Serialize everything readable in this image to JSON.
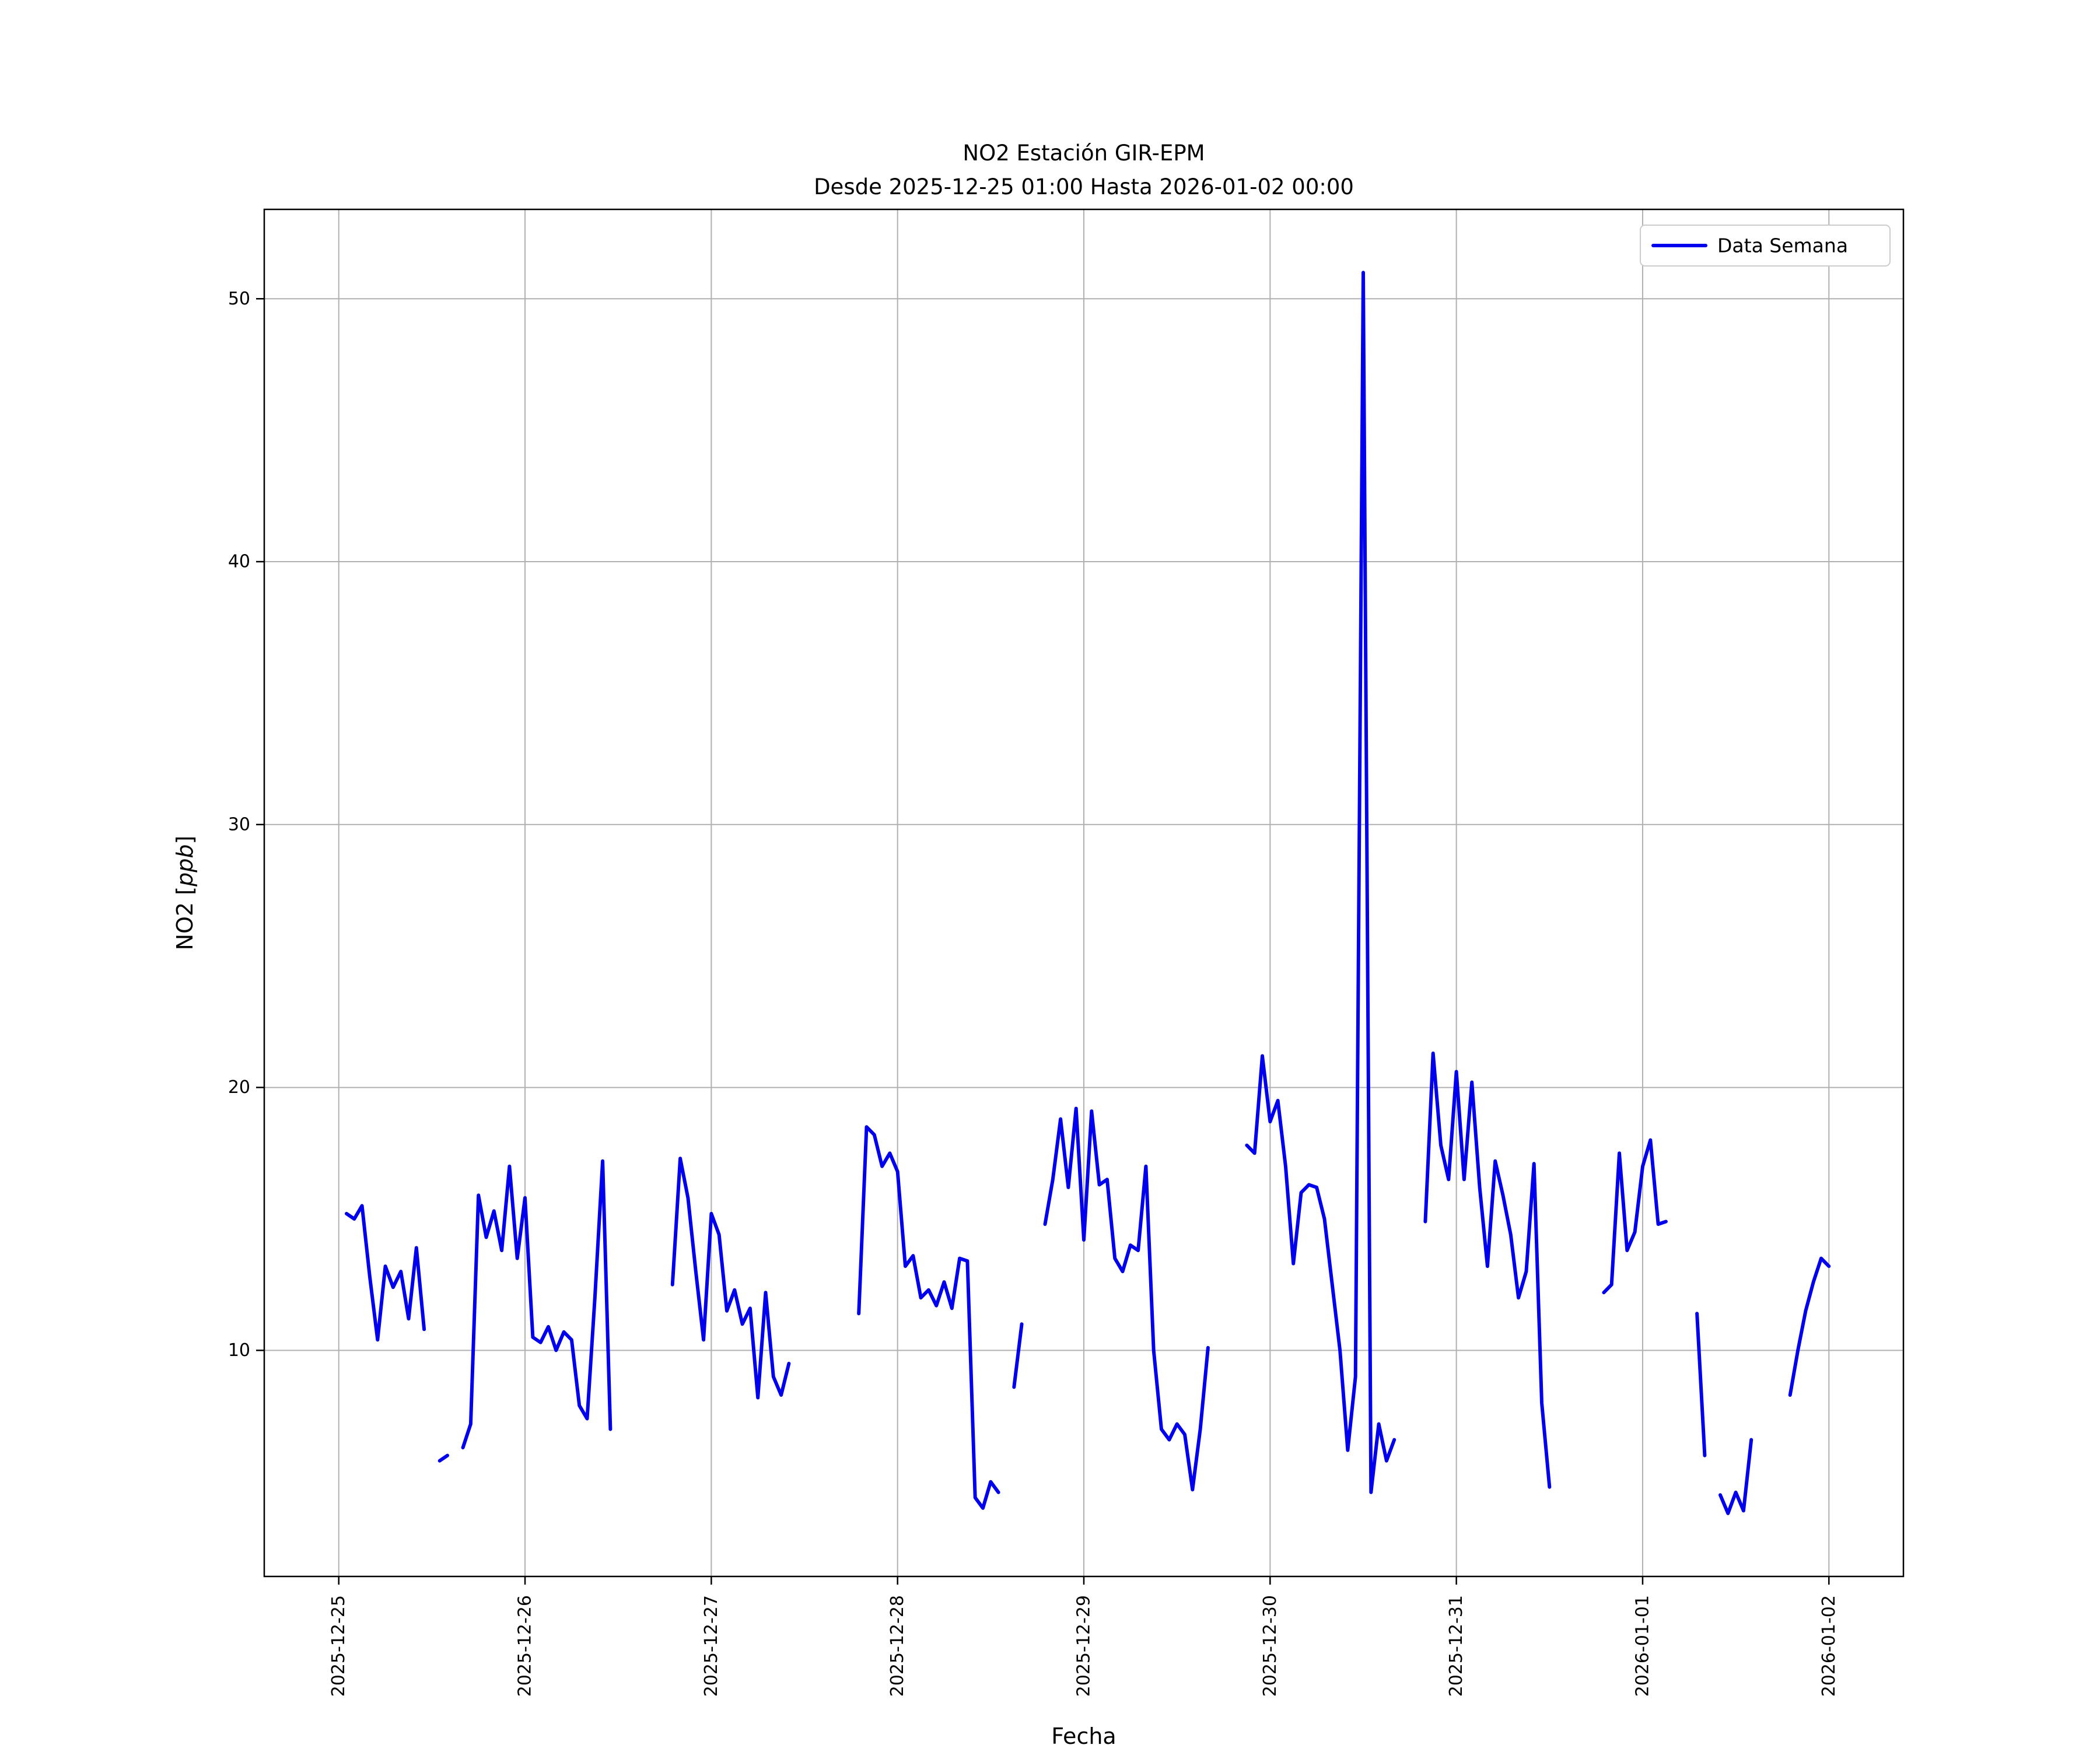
{
  "chart_data": {
    "type": "line",
    "title_line1": "NO2 Estación GIR-EPM",
    "title_line2": "Desde 2025-12-25 01:00 Hasta 2026-01-02 00:00",
    "xlabel": "Fecha",
    "ylabel_prefix": "NO2 [",
    "ylabel_italic": "ppb",
    "ylabel_suffix": "]",
    "legend": {
      "label": "Data Semana",
      "position": "upper right"
    },
    "line_color": "#0000ee",
    "grid_color": "#b0b0b0",
    "spine_color": "#000000",
    "legend_edge_color": "#cccccc",
    "grid": true,
    "x_tick_labels": [
      "2025-12-25",
      "2025-12-26",
      "2025-12-27",
      "2025-12-28",
      "2025-12-29",
      "2025-12-30",
      "2025-12-31",
      "2026-01-01",
      "2026-01-02"
    ],
    "y_ticks": [
      10,
      20,
      30,
      40,
      50
    ],
    "ylim": [
      1.4,
      53.4
    ],
    "xlim_days": [
      -0.4,
      8.4
    ],
    "x_unit": "hours since 2025-12-25 00:00",
    "series": [
      {
        "name": "Data Semana",
        "points": [
          [
            1,
            15.2
          ],
          [
            2,
            15.0
          ],
          [
            3,
            15.5
          ],
          [
            4,
            12.8
          ],
          [
            5,
            10.4
          ],
          [
            6,
            13.2
          ],
          [
            7,
            12.4
          ],
          [
            8,
            13.0
          ],
          [
            9,
            11.2
          ],
          [
            10,
            13.9
          ],
          [
            11,
            10.8
          ],
          [
            12,
            null
          ],
          [
            13,
            5.8
          ],
          [
            14,
            6.0
          ],
          [
            15,
            null
          ],
          [
            16,
            6.3
          ],
          [
            17,
            7.2
          ],
          [
            18,
            15.9
          ],
          [
            19,
            14.3
          ],
          [
            20,
            15.3
          ],
          [
            21,
            13.8
          ],
          [
            22,
            17.0
          ],
          [
            23,
            13.5
          ],
          [
            24,
            15.8
          ],
          [
            25,
            10.5
          ],
          [
            26,
            10.3
          ],
          [
            27,
            10.9
          ],
          [
            28,
            10.0
          ],
          [
            29,
            10.7
          ],
          [
            30,
            10.4
          ],
          [
            31,
            7.9
          ],
          [
            32,
            7.4
          ],
          [
            33,
            12.0
          ],
          [
            34,
            17.2
          ],
          [
            35,
            7.0
          ],
          [
            36,
            null
          ],
          [
            37,
            null
          ],
          [
            38,
            null
          ],
          [
            39,
            null
          ],
          [
            40,
            null
          ],
          [
            41,
            null
          ],
          [
            42,
            null
          ],
          [
            43,
            12.5
          ],
          [
            44,
            17.3
          ],
          [
            45,
            15.8
          ],
          [
            46,
            13.0
          ],
          [
            47,
            10.4
          ],
          [
            48,
            15.2
          ],
          [
            49,
            14.4
          ],
          [
            50,
            11.5
          ],
          [
            51,
            12.3
          ],
          [
            52,
            11.0
          ],
          [
            53,
            11.6
          ],
          [
            54,
            8.2
          ],
          [
            55,
            12.2
          ],
          [
            56,
            9.0
          ],
          [
            57,
            8.3
          ],
          [
            58,
            9.5
          ],
          [
            59,
            null
          ],
          [
            60,
            null
          ],
          [
            61,
            null
          ],
          [
            62,
            null
          ],
          [
            63,
            null
          ],
          [
            64,
            null
          ],
          [
            65,
            null
          ],
          [
            66,
            null
          ],
          [
            67,
            11.4
          ],
          [
            68,
            18.5
          ],
          [
            69,
            18.2
          ],
          [
            70,
            17.0
          ],
          [
            71,
            17.5
          ],
          [
            72,
            16.8
          ],
          [
            73,
            13.2
          ],
          [
            74,
            13.6
          ],
          [
            75,
            12.0
          ],
          [
            76,
            12.3
          ],
          [
            77,
            11.7
          ],
          [
            78,
            12.6
          ],
          [
            79,
            11.6
          ],
          [
            80,
            13.5
          ],
          [
            81,
            13.4
          ],
          [
            82,
            4.4
          ],
          [
            83,
            4.0
          ],
          [
            84,
            5.0
          ],
          [
            85,
            4.6
          ],
          [
            86,
            null
          ],
          [
            87,
            8.6
          ],
          [
            88,
            11.0
          ],
          [
            89,
            null
          ],
          [
            90,
            null
          ],
          [
            91,
            14.8
          ],
          [
            92,
            16.5
          ],
          [
            93,
            18.8
          ],
          [
            94,
            16.2
          ],
          [
            95,
            19.2
          ],
          [
            96,
            14.2
          ],
          [
            97,
            19.1
          ],
          [
            98,
            16.3
          ],
          [
            99,
            16.5
          ],
          [
            100,
            13.5
          ],
          [
            101,
            13.0
          ],
          [
            102,
            14.0
          ],
          [
            103,
            13.8
          ],
          [
            104,
            17.0
          ],
          [
            105,
            10.0
          ],
          [
            106,
            7.0
          ],
          [
            107,
            6.6
          ],
          [
            108,
            7.2
          ],
          [
            109,
            6.8
          ],
          [
            110,
            4.7
          ],
          [
            111,
            7.0
          ],
          [
            112,
            10.1
          ],
          [
            113,
            null
          ],
          [
            114,
            null
          ],
          [
            115,
            null
          ],
          [
            116,
            null
          ],
          [
            117,
            17.8
          ],
          [
            118,
            17.5
          ],
          [
            119,
            21.2
          ],
          [
            120,
            18.7
          ],
          [
            121,
            19.5
          ],
          [
            122,
            17.0
          ],
          [
            123,
            13.3
          ],
          [
            124,
            16.0
          ],
          [
            125,
            16.3
          ],
          [
            126,
            16.2
          ],
          [
            127,
            15.0
          ],
          [
            128,
            12.5
          ],
          [
            129,
            10.0
          ],
          [
            130,
            6.2
          ],
          [
            131,
            9.0
          ],
          [
            132,
            51.0
          ],
          [
            133,
            4.6
          ],
          [
            134,
            7.2
          ],
          [
            135,
            5.8
          ],
          [
            136,
            6.6
          ],
          [
            137,
            null
          ],
          [
            138,
            null
          ],
          [
            139,
            null
          ],
          [
            140,
            14.9
          ],
          [
            141,
            21.3
          ],
          [
            142,
            17.8
          ],
          [
            143,
            16.5
          ],
          [
            144,
            20.6
          ],
          [
            145,
            16.5
          ],
          [
            146,
            20.2
          ],
          [
            147,
            16.2
          ],
          [
            148,
            13.2
          ],
          [
            149,
            17.2
          ],
          [
            150,
            15.9
          ],
          [
            151,
            14.4
          ],
          [
            152,
            12.0
          ],
          [
            153,
            13.0
          ],
          [
            154,
            17.1
          ],
          [
            155,
            8.0
          ],
          [
            156,
            4.8
          ],
          [
            157,
            null
          ],
          [
            158,
            null
          ],
          [
            159,
            null
          ],
          [
            160,
            null
          ],
          [
            161,
            null
          ],
          [
            162,
            null
          ],
          [
            163,
            12.2
          ],
          [
            164,
            12.5
          ],
          [
            165,
            17.5
          ],
          [
            166,
            13.8
          ],
          [
            167,
            14.5
          ],
          [
            168,
            17.0
          ],
          [
            169,
            18.0
          ],
          [
            170,
            14.8
          ],
          [
            171,
            14.9
          ],
          [
            172,
            null
          ],
          [
            173,
            null
          ],
          [
            174,
            null
          ],
          [
            175,
            11.4
          ],
          [
            176,
            6.0
          ],
          [
            177,
            null
          ],
          [
            178,
            4.5
          ],
          [
            179,
            3.8
          ],
          [
            180,
            4.6
          ],
          [
            181,
            3.9
          ],
          [
            182,
            6.6
          ],
          [
            183,
            null
          ],
          [
            184,
            null
          ],
          [
            185,
            null
          ],
          [
            186,
            null
          ],
          [
            187,
            8.3
          ],
          [
            188,
            10.0
          ],
          [
            189,
            11.5
          ],
          [
            190,
            12.6
          ],
          [
            191,
            13.5
          ],
          [
            192,
            13.2
          ]
        ]
      }
    ]
  }
}
